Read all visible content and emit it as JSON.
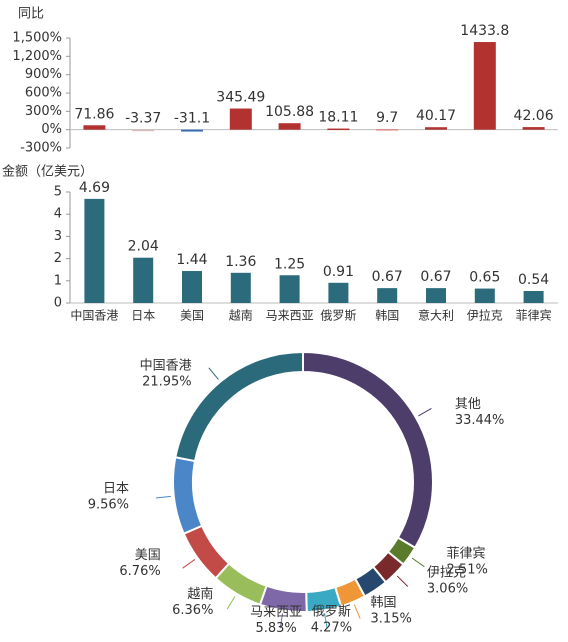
{
  "chart_data": [
    {
      "type": "bar",
      "title": "同比",
      "values": [
        71.86,
        -3.37,
        -31.1,
        345.49,
        105.88,
        18.11,
        9.7,
        40.17,
        1433.8,
        42.06
      ],
      "colors": [
        "#b2322f",
        "#d9b8b8",
        "#3a6db5",
        "#b2322f",
        "#b2322f",
        "#b2322f",
        "#d98a86",
        "#b2322f",
        "#b2322f",
        "#b2322f"
      ],
      "ylim": [
        -300,
        1500
      ],
      "yticks": [
        {
          "value": 1500,
          "label": "1,500%"
        },
        {
          "value": 1200,
          "label": "1,200%"
        },
        {
          "value": 900,
          "label": "900%"
        },
        {
          "value": 600,
          "label": "600%"
        },
        {
          "value": 300,
          "label": "300%"
        },
        {
          "value": 0,
          "label": "0%"
        },
        {
          "value": -300,
          "label": "-300%"
        }
      ]
    },
    {
      "type": "bar",
      "title": "金额（亿美元）",
      "categories": [
        "中国香港",
        "日本",
        "美国",
        "越南",
        "马来西亚",
        "俄罗斯",
        "韩国",
        "意大利",
        "伊拉克",
        "菲律宾"
      ],
      "values": [
        4.69,
        2.04,
        1.44,
        1.36,
        1.25,
        0.91,
        0.67,
        0.67,
        0.65,
        0.54
      ],
      "color": "#2b6b7b",
      "ylim": [
        0,
        5
      ],
      "yticks": [
        0,
        1,
        2,
        3,
        4,
        5
      ]
    },
    {
      "type": "pie",
      "categories": [
        "其他",
        "菲律宾",
        "伊拉克",
        null,
        "韩国",
        "俄罗斯",
        "马来西亚",
        "越南",
        "美国",
        "日本",
        "中国香港"
      ],
      "values": [
        33.44,
        2.51,
        3.06,
        3.11,
        3.15,
        4.27,
        5.83,
        6.36,
        6.76,
        9.56,
        21.95
      ],
      "value_labels": [
        "33.44%",
        "2.51%",
        "3.06%",
        null,
        "3.15%",
        "4.27%",
        "5.83%",
        "6.36%",
        "6.76%",
        "9.56%",
        "21.95%"
      ],
      "colors": [
        "#4d3d6b",
        "#5a7a2c",
        "#7a2a2a",
        "#27486e",
        "#ef9637",
        "#3aa9c4",
        "#7e68a8",
        "#98bd5a",
        "#c24b47",
        "#4a86c8",
        "#2a6a7a"
      ]
    }
  ]
}
